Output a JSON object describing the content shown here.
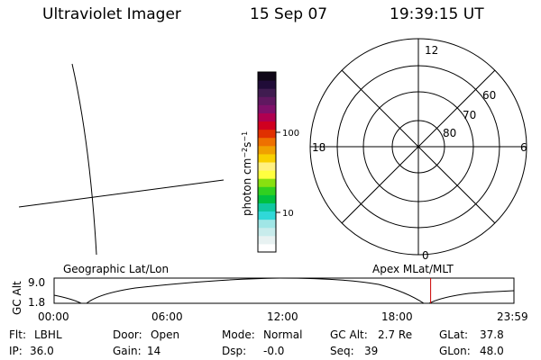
{
  "header": {
    "instrument": "Ultraviolet Imager",
    "date": "15 Sep 07",
    "time": "19:39:15 UT"
  },
  "colorbar": {
    "label_html": "photon cm<tspan baseline-shift=\"super\" font-size=\"8\">−2</tspan>s<tspan baseline-shift=\"super\" font-size=\"8\">−1</tspan>",
    "ticks": [
      "100",
      "10"
    ],
    "colors": [
      "#ffffff",
      "#e8f2f2",
      "#c8ecec",
      "#a0e6e6",
      "#30d8d8",
      "#10c8a0",
      "#00c040",
      "#30d020",
      "#88e010",
      "#ffff40",
      "#fff080",
      "#f8d000",
      "#f0a000",
      "#ee7000",
      "#e03000",
      "#d00020",
      "#b00050",
      "#80106a",
      "#601860",
      "#401c50",
      "#200c38",
      "#100818"
    ]
  },
  "polar": {
    "mlt_labels": [
      "12",
      "18",
      "6",
      "0"
    ],
    "lat_labels": [
      "80",
      "70",
      "60"
    ]
  },
  "altitude_plot": {
    "left_label": "Geographic Lat/Lon",
    "right_label": "Apex MLat/MLT",
    "axis_label": "GC Alt",
    "y_ticks": [
      "9.0",
      "1.8"
    ],
    "x_ticks": [
      "00:00",
      "06:00",
      "12:00",
      "18:00",
      "23:59"
    ],
    "marker_color": "#cc0000",
    "marker_time_hours": 19.654,
    "altitude_curve_note": "GC altitude vs UT"
  },
  "status": {
    "flt_label": "Flt:",
    "flt_value": "LBHL",
    "ip_label": "IP:",
    "ip_value": "36.0",
    "door_label": "Door:",
    "door_value": "Open",
    "gain_label": "Gain:",
    "gain_value": "14",
    "mode_label": "Mode:",
    "mode_value": "Normal",
    "dsp_label": "Dsp:",
    "dsp_value": "-0.0",
    "gcalt_label": "GC Alt:",
    "gcalt_value": "2.7 Re",
    "seq_label": "Seq:",
    "seq_value": "39",
    "glat_label": "GLat:",
    "glat_value": "37.8",
    "glon_label": "GLon:",
    "glon_value": "48.0"
  }
}
